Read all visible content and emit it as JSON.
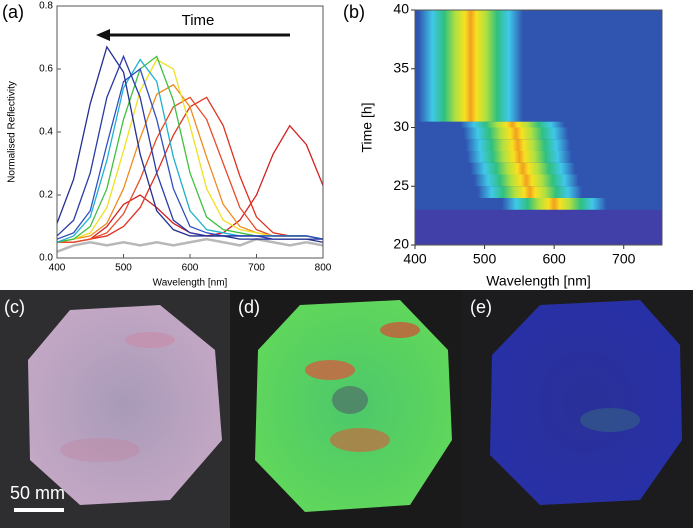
{
  "chart_data": [
    {
      "type": "line",
      "panel_label": "(a)",
      "annotation": "Time",
      "xlabel": "Wavelength [nm]",
      "ylabel": "Normalised Reflectivity",
      "x": [
        400,
        425,
        450,
        475,
        500,
        525,
        550,
        575,
        600,
        625,
        650,
        675,
        700,
        725,
        750,
        775,
        800
      ],
      "xlim": [
        400,
        800
      ],
      "xticks": [
        400,
        500,
        600,
        700,
        800
      ],
      "ylim": [
        0,
        0.8
      ],
      "yticks": [
        {
          "value": 0,
          "label": "0.0"
        },
        0.2,
        0.4,
        0.6,
        0.8
      ],
      "series": [
        {
          "color": "#b8b8b8",
          "values": [
            0.02,
            0.04,
            0.05,
            0.04,
            0.05,
            0.04,
            0.05,
            0.04,
            0.05,
            0.06,
            0.05,
            0.04,
            0.06,
            0.05,
            0.04,
            0.05,
            0.04
          ]
        },
        {
          "color": "#d42020",
          "values": [
            0.05,
            0.05,
            0.06,
            0.1,
            0.17,
            0.2,
            0.16,
            0.11,
            0.08,
            0.07,
            0.08,
            0.12,
            0.2,
            0.33,
            0.42,
            0.36,
            0.23
          ]
        },
        {
          "color": "#e03020",
          "values": [
            0.05,
            0.05,
            0.06,
            0.07,
            0.1,
            0.16,
            0.27,
            0.39,
            0.48,
            0.51,
            0.42,
            0.26,
            0.13,
            0.08,
            0.07,
            0.07,
            0.06
          ]
        },
        {
          "color": "#e84a28",
          "values": [
            0.05,
            0.05,
            0.06,
            0.08,
            0.14,
            0.25,
            0.38,
            0.48,
            0.51,
            0.44,
            0.3,
            0.16,
            0.09,
            0.07,
            0.07,
            0.07,
            0.06
          ]
        },
        {
          "color": "#f08a20",
          "values": [
            0.05,
            0.06,
            0.07,
            0.11,
            0.22,
            0.38,
            0.52,
            0.55,
            0.48,
            0.32,
            0.17,
            0.1,
            0.08,
            0.07,
            0.07,
            0.07,
            0.06
          ]
        },
        {
          "color": "#f0e020",
          "values": [
            0.05,
            0.06,
            0.08,
            0.16,
            0.34,
            0.53,
            0.63,
            0.6,
            0.42,
            0.22,
            0.12,
            0.09,
            0.08,
            0.07,
            0.07,
            0.07,
            0.06
          ]
        },
        {
          "color": "#40c040",
          "values": [
            0.05,
            0.06,
            0.1,
            0.22,
            0.44,
            0.6,
            0.64,
            0.5,
            0.27,
            0.13,
            0.09,
            0.08,
            0.07,
            0.07,
            0.07,
            0.07,
            0.06
          ]
        },
        {
          "color": "#20b0d0",
          "values": [
            0.05,
            0.07,
            0.13,
            0.31,
            0.54,
            0.63,
            0.56,
            0.32,
            0.15,
            0.09,
            0.08,
            0.07,
            0.07,
            0.07,
            0.07,
            0.07,
            0.06
          ]
        },
        {
          "color": "#3050c0",
          "values": [
            0.06,
            0.08,
            0.15,
            0.36,
            0.56,
            0.6,
            0.44,
            0.22,
            0.1,
            0.08,
            0.07,
            0.07,
            0.07,
            0.07,
            0.07,
            0.07,
            0.06
          ]
        },
        {
          "color": "#2a3aa8",
          "values": [
            0.07,
            0.12,
            0.27,
            0.51,
            0.64,
            0.51,
            0.27,
            0.12,
            0.08,
            0.07,
            0.07,
            0.07,
            0.07,
            0.06,
            0.06,
            0.06,
            0.06
          ]
        },
        {
          "color": "#223090",
          "values": [
            0.11,
            0.25,
            0.49,
            0.67,
            0.59,
            0.33,
            0.15,
            0.09,
            0.07,
            0.07,
            0.07,
            0.06,
            0.06,
            0.06,
            0.06,
            0.06,
            0.05
          ]
        }
      ]
    },
    {
      "type": "heatmap",
      "panel_label": "(b)",
      "xlabel": "Wavelength [nm]",
      "ylabel": "Time  [h]",
      "y": [
        23,
        24,
        25,
        26,
        27,
        28,
        29,
        30,
        30.5,
        32,
        34,
        36,
        38
      ],
      "values": [
        600,
        565,
        560,
        555,
        550,
        548,
        545,
        540,
        480,
        480,
        480,
        480,
        480
      ],
      "xlim": [
        400,
        755
      ],
      "xticks": [
        400,
        500,
        600,
        700
      ],
      "ylim": [
        20,
        40
      ],
      "yticks": [
        20,
        25,
        30,
        35,
        40
      ]
    }
  ],
  "panels": [
    "(c)",
    "(d)",
    "(e)"
  ],
  "scale_bar": "50 mm"
}
